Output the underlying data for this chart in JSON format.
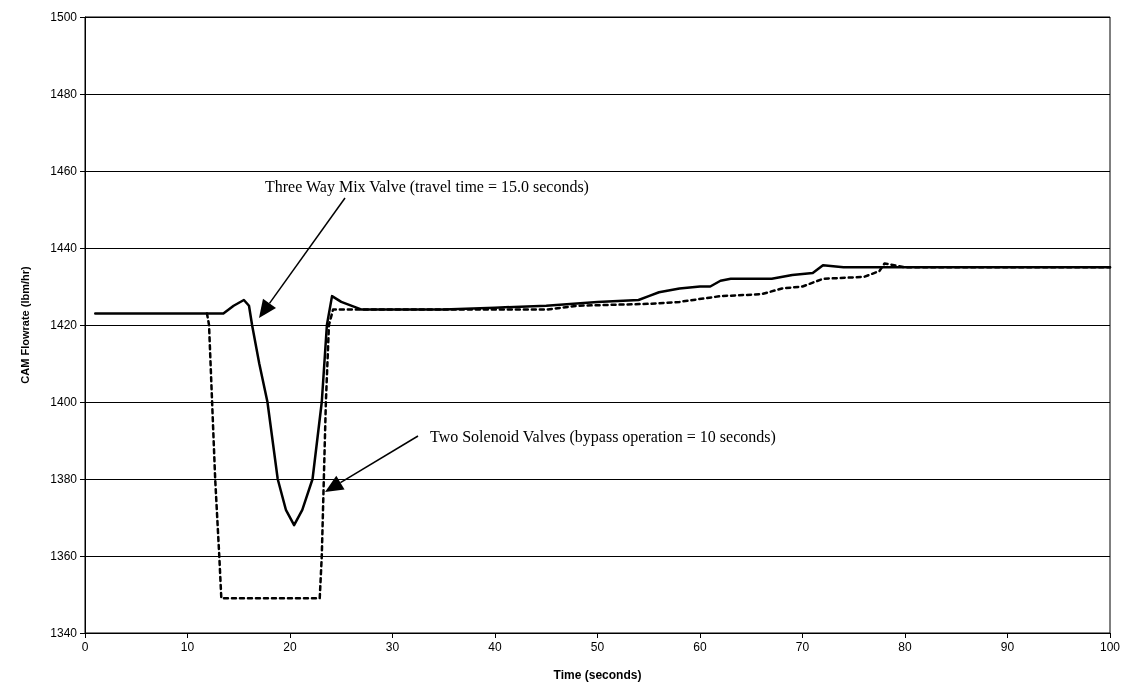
{
  "chart_data": {
    "type": "line",
    "xlabel": "Time (seconds)",
    "ylabel": "CAM Flowrate (lbm/hr)",
    "xlim": [
      0,
      100
    ],
    "xticks": [
      0,
      10,
      20,
      30,
      40,
      50,
      60,
      70,
      80,
      90,
      100
    ],
    "ylim": [
      1340,
      1500
    ],
    "yticks": [
      1340,
      1360,
      1380,
      1400,
      1420,
      1440,
      1460,
      1480,
      1500
    ],
    "grid": "y",
    "marker": "none",
    "series": [
      {
        "color": "#000000",
        "line_style": "solid",
        "x": [
          1,
          5,
          10,
          13.5,
          14.5,
          15.5,
          16,
          16.3,
          17,
          17.8,
          18.8,
          19.6,
          20.4,
          21.2,
          22.2,
          23.1,
          23.6,
          24.1,
          25,
          27,
          30,
          35,
          40,
          45,
          50,
          54,
          55,
          56,
          58,
          60,
          61,
          62,
          63,
          65,
          67,
          69,
          71,
          72,
          74,
          77,
          80,
          90,
          100
        ],
        "values": [
          1423,
          1423,
          1423,
          1423,
          1425,
          1426.5,
          1425,
          1420,
          1410,
          1400,
          1380,
          1372,
          1368,
          1372,
          1380,
          1400,
          1420,
          1427.5,
          1426,
          1424,
          1424,
          1424,
          1424.5,
          1425,
          1426,
          1426.5,
          1427.5,
          1428.5,
          1429.5,
          1430,
          1430,
          1431.5,
          1432,
          1432,
          1432,
          1433,
          1433.5,
          1435.5,
          1435,
          1435,
          1435,
          1435,
          1435
        ]
      },
      {
        "color": "#000000",
        "line_style": "dashed",
        "x": [
          11.9,
          12.1,
          12.7,
          13.1,
          13.3,
          22.9,
          23.1,
          23.3,
          23.5,
          23.8,
          24.2,
          25,
          30,
          40,
          45,
          48,
          55,
          58,
          62,
          66,
          68,
          70,
          72,
          76,
          77.5,
          78,
          80,
          90,
          100
        ],
        "values": [
          1423,
          1420,
          1380,
          1360,
          1349,
          1349,
          1360,
          1380,
          1400,
          1420,
          1424,
          1424,
          1424,
          1424,
          1424,
          1425,
          1425.5,
          1426,
          1427.5,
          1428,
          1429.5,
          1430,
          1432,
          1432.5,
          1434,
          1436,
          1435,
          1435,
          1435
        ]
      }
    ],
    "annotations": [
      "Three Way Mix Valve (travel time = 15.0 seconds)",
      "Two Solenoid Valves (bypass operation = 10 seconds)"
    ]
  }
}
